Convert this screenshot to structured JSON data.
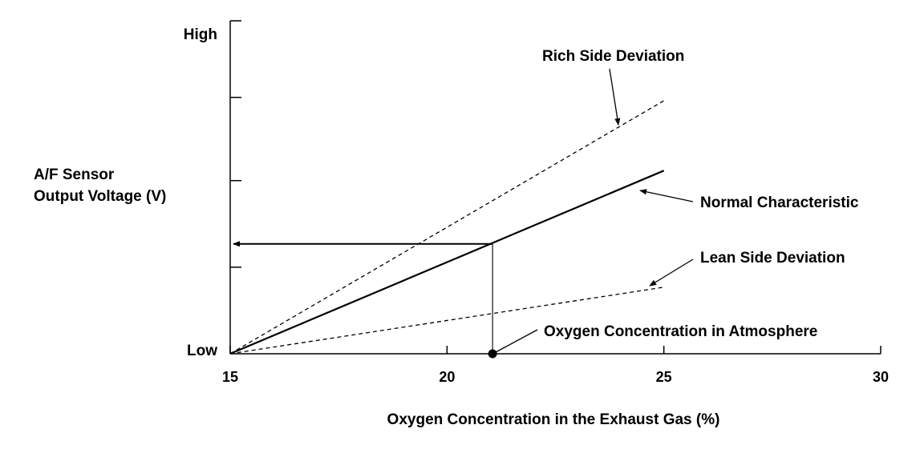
{
  "chart_data": {
    "type": "line",
    "title": "",
    "xlabel": "Oxygen Concentration in the Exhaust Gas (%)",
    "ylabel": [
      "A/F Sensor",
      "Output Voltage (V)"
    ],
    "xlim": [
      15,
      30
    ],
    "ylim": [
      0,
      1
    ],
    "x_ticks": [
      "15",
      "20",
      "25",
      "30"
    ],
    "y_tick_labels": {
      "low": "Low",
      "high": "High"
    },
    "y_minor_ticks": [
      0.26,
      0.52,
      0.77,
      1.0
    ],
    "grid": false,
    "series": [
      {
        "name": "Rich Side Deviation",
        "style": "dashed",
        "x": [
          15,
          25
        ],
        "y": [
          0,
          0.76
        ]
      },
      {
        "name": "Normal Characteristic",
        "style": "solid",
        "x": [
          15,
          25
        ],
        "y": [
          0,
          0.55
        ]
      },
      {
        "name": "Lean Side Deviation",
        "style": "dashed",
        "x": [
          15,
          24.5,
          25
        ],
        "y": [
          0,
          0.19,
          0.2
        ]
      }
    ],
    "reference": {
      "label": "Oxygen Concentration in Atmosphere",
      "x": 21.05,
      "y": 0.33
    }
  }
}
